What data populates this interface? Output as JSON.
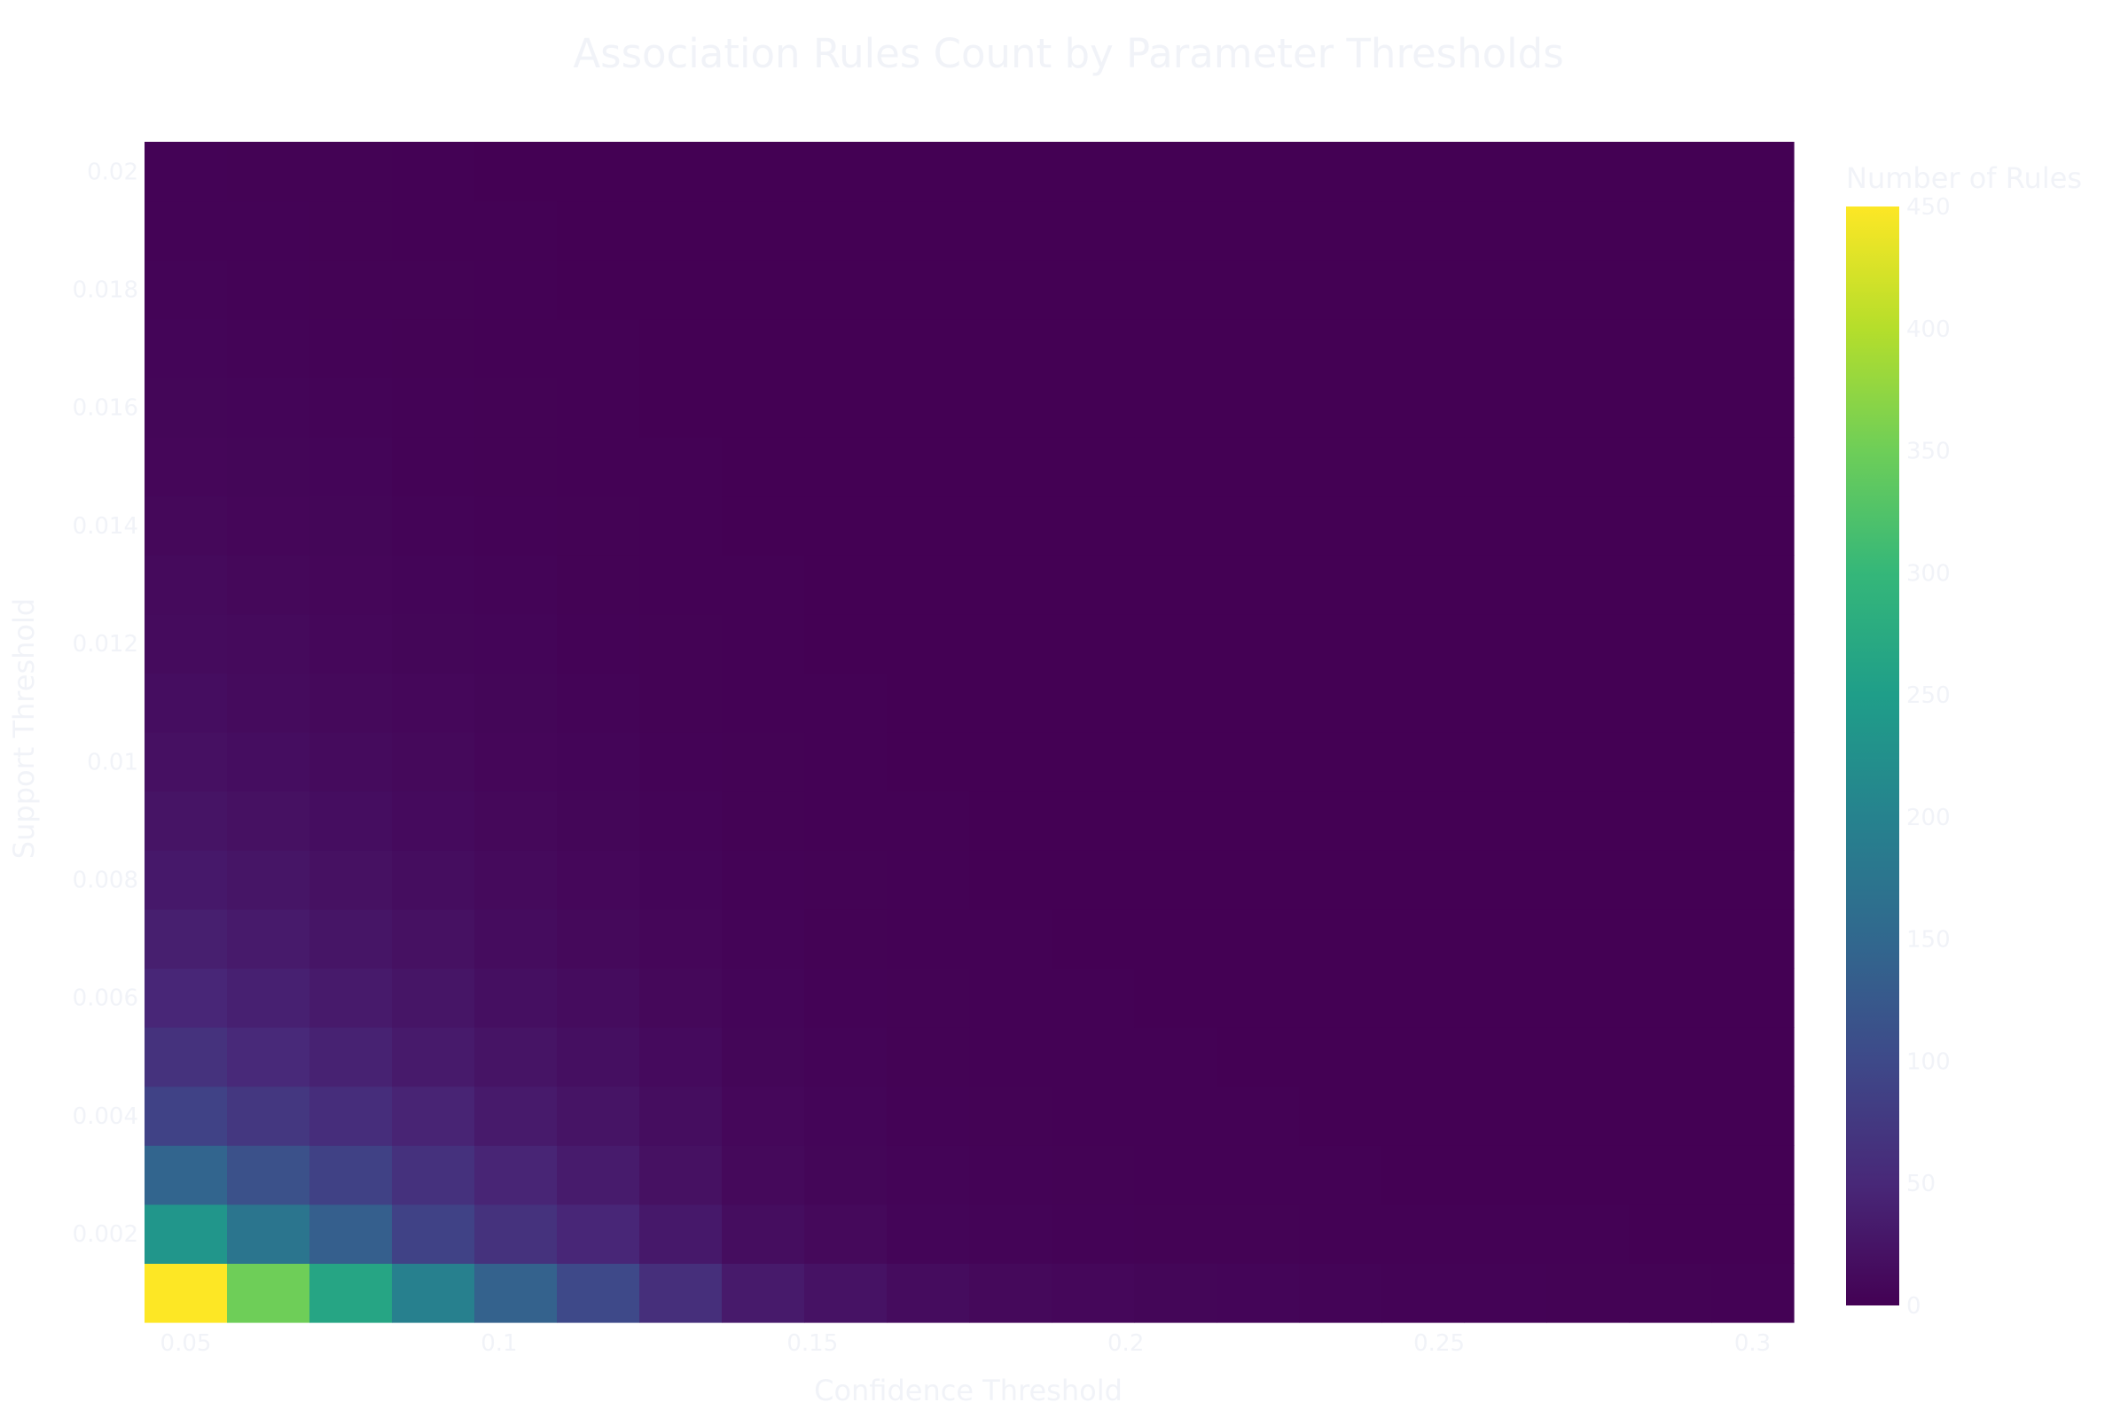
{
  "chart_data": {
    "type": "heatmap",
    "title": "Association Rules Count by Parameter Thresholds",
    "xlabel": "Confidence Threshold",
    "ylabel": "Support Threshold",
    "colorbar_title": "Number of Rules",
    "colorscale": "Viridis",
    "zlim": [
      0,
      450
    ],
    "x": [
      0.05,
      0.0632,
      0.0763,
      0.0895,
      0.1026,
      0.1158,
      0.1289,
      0.1421,
      0.1553,
      0.1684,
      0.1816,
      0.1947,
      0.2079,
      0.2211,
      0.2342,
      0.2474,
      0.2605,
      0.2737,
      0.2868,
      0.3
    ],
    "y": [
      0.001,
      0.002,
      0.003,
      0.004,
      0.005,
      0.006,
      0.007,
      0.008,
      0.009,
      0.01,
      0.011,
      0.012,
      0.013,
      0.014,
      0.015,
      0.016,
      0.017,
      0.018,
      0.019,
      0.02
    ],
    "z": [
      [
        450,
        350,
        265,
        195,
        140,
        100,
        60,
        32,
        22,
        14,
        10,
        8,
        6,
        5,
        4,
        3,
        3,
        2,
        2,
        1
      ],
      [
        235,
        175,
        135,
        90,
        65,
        48,
        30,
        15,
        10,
        5,
        4,
        3,
        2,
        2,
        1,
        1,
        1,
        1,
        0,
        0
      ],
      [
        145,
        112,
        88,
        64,
        46,
        33,
        20,
        10,
        6,
        4,
        3,
        2,
        1,
        1,
        1,
        0,
        0,
        0,
        0,
        0
      ],
      [
        90,
        72,
        58,
        45,
        32,
        24,
        15,
        8,
        5,
        3,
        2,
        1,
        1,
        1,
        0,
        0,
        0,
        0,
        0,
        0
      ],
      [
        65,
        52,
        42,
        32,
        24,
        18,
        12,
        6,
        4,
        2,
        1,
        1,
        1,
        0,
        0,
        0,
        0,
        0,
        0,
        0
      ],
      [
        48,
        40,
        32,
        25,
        18,
        14,
        9,
        5,
        3,
        2,
        1,
        1,
        0,
        0,
        0,
        0,
        0,
        0,
        0,
        0
      ],
      [
        38,
        32,
        25,
        20,
        14,
        10,
        7,
        4,
        2,
        1,
        1,
        0,
        0,
        0,
        0,
        0,
        0,
        0,
        0,
        0
      ],
      [
        30,
        25,
        20,
        15,
        11,
        8,
        5,
        3,
        2,
        1,
        0,
        0,
        0,
        0,
        0,
        0,
        0,
        0,
        0,
        0
      ],
      [
        24,
        20,
        16,
        12,
        9,
        6,
        4,
        2,
        1,
        1,
        0,
        0,
        0,
        0,
        0,
        0,
        0,
        0,
        0,
        0
      ],
      [
        19,
        16,
        13,
        10,
        7,
        5,
        3,
        2,
        1,
        0,
        0,
        0,
        0,
        0,
        0,
        0,
        0,
        0,
        0,
        0
      ],
      [
        16,
        13,
        10,
        8,
        6,
        4,
        2,
        1,
        1,
        0,
        0,
        0,
        0,
        0,
        0,
        0,
        0,
        0,
        0,
        0
      ],
      [
        13,
        11,
        8,
        6,
        5,
        3,
        2,
        1,
        0,
        0,
        0,
        0,
        0,
        0,
        0,
        0,
        0,
        0,
        0,
        0
      ],
      [
        11,
        9,
        7,
        5,
        4,
        2,
        1,
        1,
        0,
        0,
        0,
        0,
        0,
        0,
        0,
        0,
        0,
        0,
        0,
        0
      ],
      [
        9,
        7,
        6,
        4,
        3,
        2,
        1,
        0,
        0,
        0,
        0,
        0,
        0,
        0,
        0,
        0,
        0,
        0,
        0,
        0
      ],
      [
        7,
        6,
        5,
        3,
        2,
        1,
        1,
        0,
        0,
        0,
        0,
        0,
        0,
        0,
        0,
        0,
        0,
        0,
        0,
        0
      ],
      [
        6,
        5,
        4,
        3,
        2,
        1,
        0,
        0,
        0,
        0,
        0,
        0,
        0,
        0,
        0,
        0,
        0,
        0,
        0,
        0
      ],
      [
        5,
        4,
        3,
        2,
        1,
        1,
        0,
        0,
        0,
        0,
        0,
        0,
        0,
        0,
        0,
        0,
        0,
        0,
        0,
        0
      ],
      [
        4,
        3,
        2,
        2,
        1,
        0,
        0,
        0,
        0,
        0,
        0,
        0,
        0,
        0,
        0,
        0,
        0,
        0,
        0,
        0
      ],
      [
        3,
        3,
        2,
        1,
        1,
        0,
        0,
        0,
        0,
        0,
        0,
        0,
        0,
        0,
        0,
        0,
        0,
        0,
        0,
        0
      ],
      [
        3,
        2,
        2,
        1,
        0,
        0,
        0,
        0,
        0,
        0,
        0,
        0,
        0,
        0,
        0,
        0,
        0,
        0,
        0,
        0
      ]
    ],
    "xticks": [
      0.05,
      0.1,
      0.15,
      0.2,
      0.25,
      0.3
    ],
    "xtick_labels": [
      "0.05",
      "0.1",
      "0.15",
      "0.2",
      "0.25",
      "0.3"
    ],
    "yticks": [
      0.002,
      0.004,
      0.006,
      0.008,
      0.01,
      0.012,
      0.014,
      0.016,
      0.018,
      0.02
    ],
    "ytick_labels": [
      "0.002",
      "0.004",
      "0.006",
      "0.008",
      "0.01",
      "0.012",
      "0.014",
      "0.016",
      "0.018",
      "0.02"
    ],
    "colorbar_ticks": [
      0,
      50,
      100,
      150,
      200,
      250,
      300,
      350,
      400,
      450
    ],
    "grid": false,
    "legend": "colorbar-right"
  },
  "colors": {
    "background": "#ffffff",
    "text": "#f1f3f8"
  }
}
